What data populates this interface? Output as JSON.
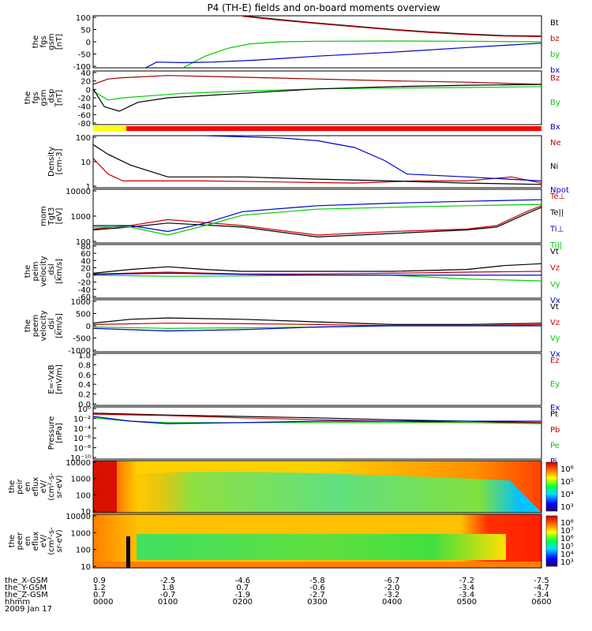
{
  "title": "P4 (TH-E) fields and on-board moments overview",
  "footer": {
    "rows": [
      {
        "label": "the_X-GSM",
        "values": [
          "0.9",
          "-2.5",
          "-4.6",
          "-5.8",
          "-6.7",
          "-7.2",
          "-7.5"
        ]
      },
      {
        "label": "the_Y-GSM",
        "values": [
          "1.2",
          "1.8",
          "0.7",
          "-0.6",
          "-2.0",
          "-3.4",
          "-4.7"
        ]
      },
      {
        "label": "the_Z-GSM",
        "values": [
          "0.7",
          "-0.7",
          "-1.9",
          "-2.7",
          "-3.2",
          "-3.4",
          "-3.4"
        ]
      },
      {
        "label": "hhmm",
        "values": [
          "0000",
          "0100",
          "0200",
          "0300",
          "0400",
          "0500",
          "0600"
        ]
      }
    ],
    "date": "2009 Jan 17"
  },
  "colors": {
    "black": "#000000",
    "red": "#cc0000",
    "darkred": "#a00000",
    "green": "#00cc00",
    "blue": "#0000cc",
    "yellow": "#ffff00"
  },
  "chart_data": [
    {
      "type": "line",
      "ylabel": [
        "the",
        "fgs",
        "gsm",
        "[nT]"
      ],
      "yticks": [
        "100",
        "50",
        "0",
        "-50",
        "-100"
      ],
      "ylim": [
        -100,
        100
      ],
      "legend": [
        {
          "name": "Bt",
          "color": "#000000"
        },
        {
          "name": "bz",
          "color": "#cc0000"
        },
        {
          "name": "by",
          "color": "#00cc00"
        },
        {
          "name": "bx",
          "color": "#0000cc"
        }
      ],
      "series": [
        {
          "name": "Bt",
          "color": "#000000",
          "x": [
            2.0,
            2.5,
            3,
            3.5,
            4,
            4.5,
            5,
            5.5,
            6
          ],
          "values": [
            100,
            85,
            72,
            60,
            48,
            38,
            30,
            24,
            22
          ]
        },
        {
          "name": "bz",
          "color": "#cc0000",
          "x": [
            2.0,
            2.5,
            3,
            3.5,
            4,
            4.5,
            5,
            5.5,
            6
          ],
          "values": [
            98,
            83,
            70,
            58,
            46,
            36,
            28,
            22,
            20
          ]
        },
        {
          "name": "by",
          "color": "#00cc00",
          "x": [
            1.2,
            1.5,
            1.8,
            2.1,
            2.5,
            3,
            4,
            5,
            6
          ],
          "values": [
            -100,
            -55,
            -25,
            -8,
            0,
            2,
            3,
            2,
            0
          ]
        },
        {
          "name": "bx",
          "color": "#0000cc",
          "x": [
            0.7,
            0.85,
            1.2,
            1.6,
            2.2,
            3,
            4,
            5,
            6
          ],
          "values": [
            -100,
            -78,
            -80,
            -78,
            -70,
            -55,
            -40,
            -22,
            -5
          ]
        }
      ]
    },
    {
      "type": "line",
      "ylabel": [
        "the",
        "fgs",
        "gsm",
        "_dsp",
        "[nT]"
      ],
      "yticks": [
        "40",
        "20",
        "0",
        "-20",
        "-40",
        "-60",
        "-80"
      ],
      "ylim": [
        -80,
        40
      ],
      "legend": [
        {
          "name": "Bz",
          "color": "#cc0000"
        },
        {
          "name": "By",
          "color": "#00cc00"
        },
        {
          "name": "Bx",
          "color": "#0000cc"
        }
      ],
      "series": [
        {
          "name": "Bz",
          "color": "#a00000",
          "x": [
            0,
            0.2,
            0.4,
            1,
            2,
            3,
            4,
            5,
            6
          ],
          "values": [
            10,
            22,
            25,
            30,
            26,
            22,
            18,
            15,
            10
          ]
        },
        {
          "name": "By",
          "color": "#00cc00",
          "x": [
            0,
            0.2,
            0.4,
            0.8,
            1.2,
            2,
            3,
            4,
            5,
            6
          ],
          "values": [
            -5,
            -25,
            -20,
            -15,
            -10,
            -5,
            0,
            2,
            3,
            5
          ]
        },
        {
          "name": "Bx",
          "color": "#000000",
          "x": [
            0,
            0.15,
            0.35,
            0.6,
            1,
            2,
            3,
            4,
            5,
            6
          ],
          "values": [
            0,
            -40,
            -50,
            -30,
            -20,
            -10,
            0,
            5,
            8,
            10
          ]
        }
      ]
    },
    {
      "type": "line",
      "ylabel": [
        "Density",
        "[cm-3]"
      ],
      "yticks": [
        "100",
        "10",
        "1"
      ],
      "scale": "log",
      "ylim": [
        0.5,
        100
      ],
      "legend": [
        {
          "name": "Ne",
          "color": "#cc0000"
        },
        {
          "name": "Ni",
          "color": "#000000"
        },
        {
          "name": "Npot",
          "color": "#0000cc"
        }
      ],
      "series": [
        {
          "name": "Ne",
          "color": "#cc0000",
          "x": [
            0,
            0.2,
            0.4,
            0.8,
            1.5,
            2.5,
            3.5,
            4.3,
            5,
            5.6,
            6
          ],
          "values": [
            10,
            2,
            1,
            1,
            1,
            0.9,
            0.8,
            1,
            1,
            1.5,
            0.8
          ]
        },
        {
          "name": "Ni",
          "color": "#000000",
          "x": [
            0,
            0.2,
            0.5,
            1,
            1.5,
            2,
            3,
            4,
            5,
            6
          ],
          "values": [
            40,
            15,
            5,
            1.5,
            1.5,
            1.5,
            1.2,
            1,
            0.8,
            0.7
          ]
        },
        {
          "name": "Npot",
          "color": "#0000cc",
          "x": [
            1.5,
            2.5,
            3,
            3.5,
            3.9,
            4.2,
            5,
            6
          ],
          "values": [
            100,
            80,
            60,
            30,
            8,
            2,
            1.5,
            1
          ]
        }
      ]
    },
    {
      "type": "line",
      "ylabel": [
        "mom",
        "Tgt3",
        "[eV]"
      ],
      "yticks": [
        "10000",
        "1000",
        "100"
      ],
      "scale": "log",
      "ylim": [
        40,
        20000
      ],
      "legend": [
        {
          "name": "Te⊥",
          "color": "#cc0000"
        },
        {
          "name": "Te||",
          "color": "#000000"
        },
        {
          "name": "Ti⊥",
          "color": "#0000cc"
        },
        {
          "name": "Ti||",
          "color": "#00cc00"
        }
      ],
      "series": [
        {
          "name": "Te⊥",
          "color": "#cc0000",
          "x": [
            0,
            0.5,
            1,
            2,
            3,
            4,
            5,
            5.4,
            5.8,
            6
          ],
          "values": [
            200,
            300,
            600,
            300,
            100,
            150,
            200,
            300,
            1500,
            3000
          ]
        },
        {
          "name": "Te||",
          "color": "#000000",
          "x": [
            0,
            0.5,
            1,
            2,
            3,
            4,
            5,
            5.4,
            5.8,
            6
          ],
          "values": [
            180,
            250,
            400,
            250,
            80,
            120,
            180,
            250,
            1200,
            2500
          ]
        },
        {
          "name": "Ti⊥",
          "color": "#0000cc",
          "x": [
            0,
            0.5,
            1,
            1.5,
            2,
            3,
            4,
            5,
            6
          ],
          "values": [
            300,
            300,
            150,
            400,
            1500,
            3000,
            4000,
            5000,
            6000
          ]
        },
        {
          "name": "Ti||",
          "color": "#00cc00",
          "x": [
            0,
            0.5,
            1,
            1.5,
            2,
            3,
            4,
            5,
            6
          ],
          "values": [
            250,
            250,
            100,
            300,
            1000,
            2000,
            2500,
            3000,
            3500
          ]
        }
      ]
    },
    {
      "type": "line",
      "ylabel": [
        "the",
        "peim",
        "velocity",
        "_dsl",
        "[km/s]"
      ],
      "yticks": [
        "80",
        "60",
        "40",
        "20",
        "0",
        "-20",
        "-40",
        "-60"
      ],
      "ylim": [
        -60,
        80
      ],
      "legend": [
        {
          "name": "Vt",
          "color": "#000000"
        },
        {
          "name": "Vz",
          "color": "#cc0000"
        },
        {
          "name": "Vy",
          "color": "#00cc00"
        },
        {
          "name": "Vx",
          "color": "#0000cc"
        }
      ],
      "series": [
        {
          "name": "Vt",
          "color": "#000000",
          "x": [
            0,
            0.5,
            1,
            1.5,
            2,
            3,
            4,
            5,
            5.5,
            6
          ],
          "values": [
            5,
            15,
            22,
            15,
            10,
            10,
            10,
            15,
            25,
            30
          ]
        },
        {
          "name": "Vz",
          "color": "#cc0000",
          "x": [
            0,
            1,
            2,
            3,
            4,
            5,
            6
          ],
          "values": [
            3,
            8,
            3,
            3,
            5,
            8,
            10
          ]
        },
        {
          "name": "Vy",
          "color": "#00cc00",
          "x": [
            0,
            1,
            2,
            3,
            4,
            5,
            6
          ],
          "values": [
            0,
            -3,
            -2,
            0,
            0,
            -10,
            -15
          ]
        },
        {
          "name": "Vx",
          "color": "#0000cc",
          "x": [
            0,
            1,
            2,
            3,
            4,
            5,
            6
          ],
          "values": [
            2,
            5,
            2,
            0,
            0,
            0,
            0
          ]
        }
      ]
    },
    {
      "type": "line",
      "ylabel": [
        "the",
        "peem",
        "velocity",
        "_dsl",
        "[km/s]"
      ],
      "yticks": [
        "1000",
        "500",
        "0",
        "-500",
        "-1000"
      ],
      "ylim": [
        -1000,
        1000
      ],
      "legend": [
        {
          "name": "Vt",
          "color": "#000000"
        },
        {
          "name": "Vz",
          "color": "#cc0000"
        },
        {
          "name": "Vy",
          "color": "#00cc00"
        },
        {
          "name": "Vx",
          "color": "#0000cc"
        }
      ],
      "series": [
        {
          "name": "Vt",
          "color": "#000000",
          "x": [
            0,
            0.5,
            1,
            2,
            3,
            4,
            5,
            6
          ],
          "values": [
            100,
            250,
            300,
            250,
            150,
            50,
            50,
            100
          ]
        },
        {
          "name": "Vz",
          "color": "#cc0000",
          "x": [
            0,
            1,
            2,
            3,
            4,
            5,
            6
          ],
          "values": [
            50,
            100,
            80,
            50,
            0,
            0,
            50
          ]
        },
        {
          "name": "Vy",
          "color": "#00cc00",
          "x": [
            0,
            1,
            2,
            3,
            4,
            5,
            6
          ],
          "values": [
            -50,
            -100,
            -80,
            -50,
            0,
            0,
            0
          ]
        },
        {
          "name": "Vx",
          "color": "#0000cc",
          "x": [
            0,
            1,
            2,
            3,
            4,
            5,
            6
          ],
          "values": [
            -100,
            -200,
            -150,
            -50,
            0,
            0,
            0
          ]
        }
      ]
    },
    {
      "type": "line",
      "ylabel": [
        "E=-VxB",
        "[mV/m]"
      ],
      "yticks": [
        "1.0",
        "0.8",
        "0.6",
        "0.4",
        "0.2",
        "0.0"
      ],
      "ylim": [
        0,
        1
      ],
      "legend": [
        {
          "name": "Ez",
          "color": "#cc0000"
        },
        {
          "name": "Ey",
          "color": "#00cc00"
        },
        {
          "name": "Ex",
          "color": "#0000cc"
        }
      ],
      "series": []
    },
    {
      "type": "line",
      "ylabel": [
        "Pressure",
        "[nPa]"
      ],
      "yticks": [
        "10⁰",
        "10⁻²",
        "10⁻⁴",
        "10⁻⁶",
        "10⁻⁸",
        "10⁻¹⁰"
      ],
      "scale": "log",
      "ylim": [
        1e-10,
        10
      ],
      "legend": [
        {
          "name": "Pt",
          "color": "#000000"
        },
        {
          "name": "Pb",
          "color": "#cc0000"
        },
        {
          "name": "Pe",
          "color": "#00cc00"
        },
        {
          "name": "Pi",
          "color": "#0000cc"
        }
      ],
      "series": [
        {
          "name": "Pt",
          "color": "#000000",
          "x": [
            0,
            1,
            2,
            3,
            4,
            5,
            6
          ],
          "values": [
            0.5,
            0.2,
            0.1,
            0.05,
            0.02,
            0.01,
            0.005
          ]
        },
        {
          "name": "Pb",
          "color": "#cc0000",
          "x": [
            0,
            1,
            2,
            3,
            4,
            5,
            6
          ],
          "values": [
            0.3,
            0.15,
            0.05,
            0.02,
            0.01,
            0.005,
            0.005
          ]
        },
        {
          "name": "Pe",
          "color": "#00cc00",
          "x": [
            0,
            0.5,
            1,
            2,
            3,
            4,
            5,
            6
          ],
          "values": [
            0.05,
            0.01,
            0.005,
            0.005,
            0.005,
            0.005,
            0.005,
            0.003
          ]
        },
        {
          "name": "Pi",
          "color": "#0000cc",
          "x": [
            0,
            0.5,
            1,
            2,
            3,
            4,
            5,
            6
          ],
          "values": [
            0.1,
            0.01,
            0.003,
            0.005,
            0.01,
            0.01,
            0.01,
            0.01
          ]
        }
      ]
    },
    {
      "type": "heatmap",
      "ylabel": [
        "the",
        "peir",
        "en",
        "eflux",
        "eV/",
        "(cm²-s-",
        "sr-eV)"
      ],
      "yticks": [
        "10000",
        "1000",
        "100",
        "10"
      ],
      "colorbar_ticks": [
        "10⁶",
        "10⁵",
        "10⁴",
        "10³"
      ]
    },
    {
      "type": "heatmap",
      "ylabel": [
        "the",
        "peer",
        "en",
        "eflux",
        "eV/",
        "(cm²-s-",
        "sr-eV)"
      ],
      "yticks": [
        "10000",
        "1000",
        "100",
        "10"
      ],
      "colorbar_ticks": [
        "10⁸",
        "10⁷",
        "10⁶",
        "10⁵",
        "10⁴",
        "10³"
      ]
    }
  ]
}
